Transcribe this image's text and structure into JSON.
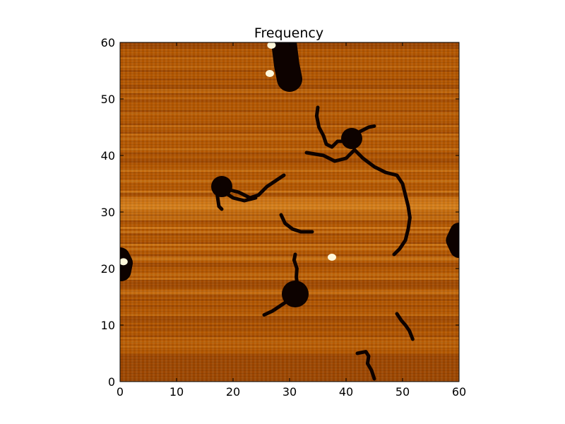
{
  "chart_data": {
    "type": "heatmap",
    "title": "Frequency",
    "xlabel": "",
    "ylabel": "",
    "xlim": [
      0,
      60
    ],
    "ylim": [
      0,
      60
    ],
    "x_ticks": [
      0,
      10,
      20,
      30,
      40,
      50,
      60
    ],
    "y_ticks": [
      0,
      10,
      20,
      30,
      40,
      50,
      60
    ],
    "colormap": "afmhot",
    "colors": {
      "background": "#b25600",
      "band_dark": "#8a3a00",
      "band_light": "#e08b22",
      "feature": "#0d0200",
      "bright_spot": "#fff8dc"
    },
    "features": [
      {
        "name": "top-blob",
        "points": [
          [
            29,
            60
          ],
          [
            29.5,
            56
          ],
          [
            30,
            53.5
          ]
        ]
      },
      {
        "name": "left-edge-blob",
        "points": [
          [
            0,
            22
          ],
          [
            0.5,
            21
          ],
          [
            0.2,
            19.5
          ]
        ]
      },
      {
        "name": "right-edge-blob",
        "points": [
          [
            60,
            26.5
          ],
          [
            59.3,
            25
          ],
          [
            60,
            23.5
          ]
        ]
      },
      {
        "name": "center-left-blob",
        "points": [
          [
            18,
            34.5
          ]
        ]
      },
      {
        "name": "upper-right-blob",
        "points": [
          [
            41,
            43
          ]
        ]
      },
      {
        "name": "lower-center-blob",
        "points": [
          [
            31,
            15.5
          ]
        ]
      },
      {
        "name": "long-strand",
        "points": [
          [
            33,
            40.5
          ],
          [
            36,
            40
          ],
          [
            38,
            39
          ],
          [
            40,
            39.5
          ],
          [
            41.5,
            41
          ],
          [
            43,
            39.5
          ],
          [
            45,
            38
          ],
          [
            47,
            37
          ],
          [
            49,
            36.5
          ],
          [
            50,
            35
          ],
          [
            50.5,
            33
          ],
          [
            51,
            31
          ],
          [
            51.3,
            29
          ],
          [
            51,
            27
          ],
          [
            50.5,
            25
          ],
          [
            49.5,
            23.5
          ],
          [
            48.5,
            22.5
          ]
        ]
      },
      {
        "name": "upper-strand",
        "points": [
          [
            35,
            48.5
          ],
          [
            34.8,
            47
          ],
          [
            35.2,
            45
          ],
          [
            36,
            43.5
          ],
          [
            36.5,
            42
          ],
          [
            37.5,
            41.5
          ],
          [
            38.5,
            42.5
          ],
          [
            39.5,
            42.5
          ],
          [
            40.5,
            43
          ]
        ]
      },
      {
        "name": "upper-right-tail",
        "points": [
          [
            42,
            44
          ],
          [
            44,
            45
          ],
          [
            45,
            45.2
          ]
        ]
      },
      {
        "name": "center-left-strand",
        "points": [
          [
            19,
            34
          ],
          [
            21,
            33.5
          ],
          [
            23,
            32.5
          ],
          [
            24.5,
            33
          ],
          [
            26,
            34.5
          ],
          [
            27.5,
            35.5
          ],
          [
            29,
            36.5
          ]
        ]
      },
      {
        "name": "center-left-lower-arm",
        "points": [
          [
            18.5,
            33.5
          ],
          [
            20,
            32.5
          ],
          [
            22,
            32
          ],
          [
            24,
            32.5
          ]
        ]
      },
      {
        "name": "center-left-spur",
        "points": [
          [
            17.5,
            35
          ],
          [
            17.2,
            33
          ],
          [
            17.5,
            31
          ],
          [
            18,
            30.5
          ]
        ]
      },
      {
        "name": "middle-strand",
        "points": [
          [
            28.5,
            29.5
          ],
          [
            29.2,
            28
          ],
          [
            30.5,
            27
          ],
          [
            32,
            26.5
          ],
          [
            34,
            26.5
          ]
        ]
      },
      {
        "name": "lower-center-up-arm",
        "points": [
          [
            31.5,
            16
          ],
          [
            31.2,
            18.5
          ],
          [
            31.3,
            20
          ],
          [
            30.8,
            21.5
          ],
          [
            31,
            22.5
          ]
        ]
      },
      {
        "name": "lower-center-down-arm",
        "points": [
          [
            30,
            14.5
          ],
          [
            28.5,
            13.5
          ],
          [
            27,
            12.5
          ],
          [
            25.5,
            11.8
          ]
        ]
      },
      {
        "name": "lower-right-strand",
        "points": [
          [
            49,
            12
          ],
          [
            49.8,
            10.8
          ],
          [
            50.5,
            10
          ],
          [
            51.2,
            9
          ],
          [
            51.8,
            7.5
          ]
        ]
      },
      {
        "name": "bottom-strand",
        "points": [
          [
            42,
            5
          ],
          [
            43.5,
            5.3
          ],
          [
            44,
            4.5
          ],
          [
            43.8,
            3.2
          ],
          [
            44.5,
            2
          ],
          [
            45,
            0.5
          ]
        ]
      }
    ],
    "bright_spots": [
      {
        "points": [
          [
            26.5,
            54.5
          ]
        ]
      },
      {
        "points": [
          [
            26.8,
            59.5
          ]
        ]
      },
      {
        "points": [
          [
            0.6,
            21.2
          ]
        ]
      },
      {
        "points": [
          [
            37.5,
            22
          ]
        ]
      }
    ]
  }
}
